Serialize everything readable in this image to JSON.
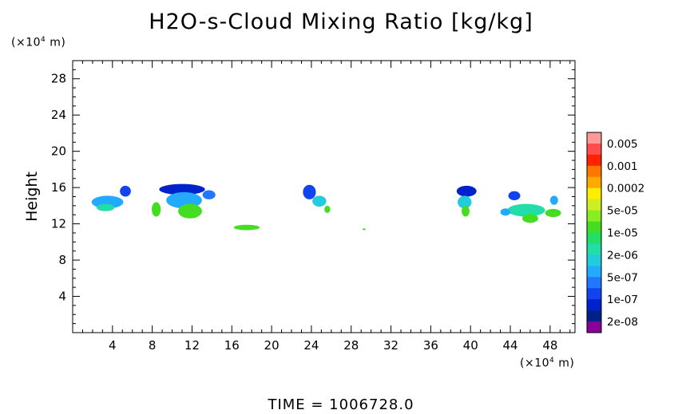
{
  "chart_data": {
    "type": "heatmap",
    "title": "H2O-s-Cloud Mixing Ratio [kg/kg]",
    "ylabel": "Height",
    "y_unit": {
      "prefix": "(×10",
      "exp": "4",
      "suffix": " m)"
    },
    "x_unit": {
      "prefix": "(×10",
      "exp": "4",
      "suffix": " m)"
    },
    "xlim": [
      0,
      50.5
    ],
    "ylim": [
      0,
      30
    ],
    "x_ticks": [
      4,
      8,
      12,
      16,
      20,
      24,
      28,
      32,
      36,
      40,
      44,
      48
    ],
    "y_ticks": [
      4,
      8,
      12,
      16,
      20,
      24,
      28
    ],
    "time_label": "TIME  =  1006728.0",
    "colorbar": {
      "levels": [
        {
          "label": "0.005",
          "color": "#ff9999"
        },
        {
          "label": "",
          "color": "#ff4d4d"
        },
        {
          "label": "0.001",
          "color": "#ff2200"
        },
        {
          "label": "",
          "color": "#ff7700"
        },
        {
          "label": "0.0002",
          "color": "#ffaa00"
        },
        {
          "label": "",
          "color": "#ffee00"
        },
        {
          "label": "5e-05",
          "color": "#ccee22"
        },
        {
          "label": "",
          "color": "#88ee22"
        },
        {
          "label": "1e-05",
          "color": "#44dd22"
        },
        {
          "label": "",
          "color": "#22dd66"
        },
        {
          "label": "2e-06",
          "color": "#22ddaa"
        },
        {
          "label": "",
          "color": "#22ccdd"
        },
        {
          "label": "5e-07",
          "color": "#22aaff"
        },
        {
          "label": "",
          "color": "#2277ff"
        },
        {
          "label": "1e-07",
          "color": "#1144ee"
        },
        {
          "label": "",
          "color": "#0022cc"
        },
        {
          "label": "2e-08",
          "color": "#002288"
        },
        {
          "label": "",
          "color": "#880099"
        }
      ]
    },
    "cloud_patches": [
      {
        "x": 3.5,
        "y": 14.4,
        "w": 3.2,
        "h": 1.4,
        "level": 12
      },
      {
        "x": 3.3,
        "y": 13.8,
        "w": 1.8,
        "h": 0.8,
        "level": 10
      },
      {
        "x": 5.3,
        "y": 15.6,
        "w": 1.1,
        "h": 1.2,
        "level": 14
      },
      {
        "x": 8.4,
        "y": 13.6,
        "w": 0.9,
        "h": 1.6,
        "level": 8
      },
      {
        "x": 11.0,
        "y": 15.8,
        "w": 4.6,
        "h": 1.2,
        "level": 15
      },
      {
        "x": 11.2,
        "y": 14.6,
        "w": 3.6,
        "h": 1.8,
        "level": 12
      },
      {
        "x": 11.8,
        "y": 13.4,
        "w": 2.4,
        "h": 1.6,
        "level": 8
      },
      {
        "x": 13.7,
        "y": 15.2,
        "w": 1.3,
        "h": 1.0,
        "level": 13
      },
      {
        "x": 17.5,
        "y": 11.6,
        "w": 2.6,
        "h": 0.6,
        "level": 8
      },
      {
        "x": 23.8,
        "y": 15.5,
        "w": 1.3,
        "h": 1.6,
        "level": 14
      },
      {
        "x": 24.8,
        "y": 14.5,
        "w": 1.4,
        "h": 1.2,
        "level": 11
      },
      {
        "x": 25.6,
        "y": 13.6,
        "w": 0.6,
        "h": 0.8,
        "level": 8
      },
      {
        "x": 29.3,
        "y": 11.4,
        "w": 0.3,
        "h": 0.2,
        "level": 8
      },
      {
        "x": 39.6,
        "y": 15.6,
        "w": 2.0,
        "h": 1.2,
        "level": 15
      },
      {
        "x": 39.4,
        "y": 14.4,
        "w": 1.4,
        "h": 1.4,
        "level": 11
      },
      {
        "x": 39.5,
        "y": 13.4,
        "w": 0.8,
        "h": 1.2,
        "level": 8
      },
      {
        "x": 44.4,
        "y": 15.1,
        "w": 1.2,
        "h": 1.0,
        "level": 14
      },
      {
        "x": 45.6,
        "y": 13.5,
        "w": 3.8,
        "h": 1.4,
        "level": 10
      },
      {
        "x": 46.0,
        "y": 12.6,
        "w": 1.6,
        "h": 1.0,
        "level": 8
      },
      {
        "x": 48.3,
        "y": 13.2,
        "w": 1.6,
        "h": 0.9,
        "level": 8
      },
      {
        "x": 48.4,
        "y": 14.6,
        "w": 0.8,
        "h": 1.0,
        "level": 12
      },
      {
        "x": 43.5,
        "y": 13.3,
        "w": 1.0,
        "h": 0.8,
        "level": 12
      }
    ]
  }
}
